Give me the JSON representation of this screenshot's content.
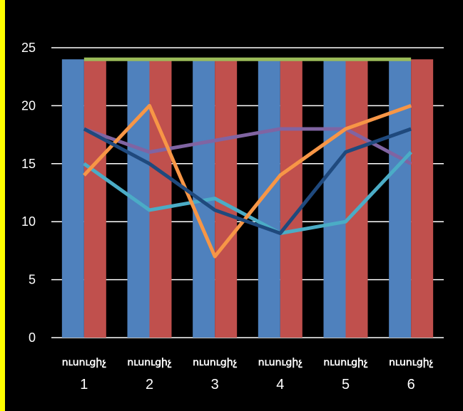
{
  "frame": {
    "background": "#000000",
    "accent_stripe": "#ffff00"
  },
  "chart_data": {
    "type": "bar",
    "title": "",
    "xlabel": "",
    "ylabel": "",
    "ylim": [
      0,
      25
    ],
    "yticks": [
      0,
      5,
      10,
      15,
      20,
      25
    ],
    "grid": true,
    "legend": "none",
    "categories": [
      {
        "word": "ուսուցիչ",
        "number": "1"
      },
      {
        "word": "ուսուցիչ",
        "number": "2"
      },
      {
        "word": "ուսուցիչ",
        "number": "3"
      },
      {
        "word": "ուսուցիչ",
        "number": "4"
      },
      {
        "word": "ուսուցիչ",
        "number": "5"
      },
      {
        "word": "ուսուցիչ",
        "number": "6"
      }
    ],
    "bar_series": [
      {
        "values": [
          24,
          24,
          24,
          24,
          24,
          24
        ],
        "color": "#4f81bd"
      },
      {
        "values": [
          24,
          24,
          24,
          24,
          24,
          24
        ],
        "color": "#c0504d"
      }
    ],
    "line_series": [
      {
        "values": [
          24,
          24,
          24,
          24,
          24,
          24
        ],
        "color": "#9bbb59"
      },
      {
        "values": [
          18,
          16,
          17,
          18,
          18,
          15
        ],
        "color": "#8064a2"
      },
      {
        "values": [
          15,
          11,
          12,
          9,
          10,
          16
        ],
        "color": "#4bacc6"
      },
      {
        "values": [
          14,
          20,
          7,
          14,
          18,
          20
        ],
        "color": "#f79646"
      },
      {
        "values": [
          18,
          15,
          11,
          9,
          16,
          18
        ],
        "color": "#1f497d"
      }
    ]
  }
}
